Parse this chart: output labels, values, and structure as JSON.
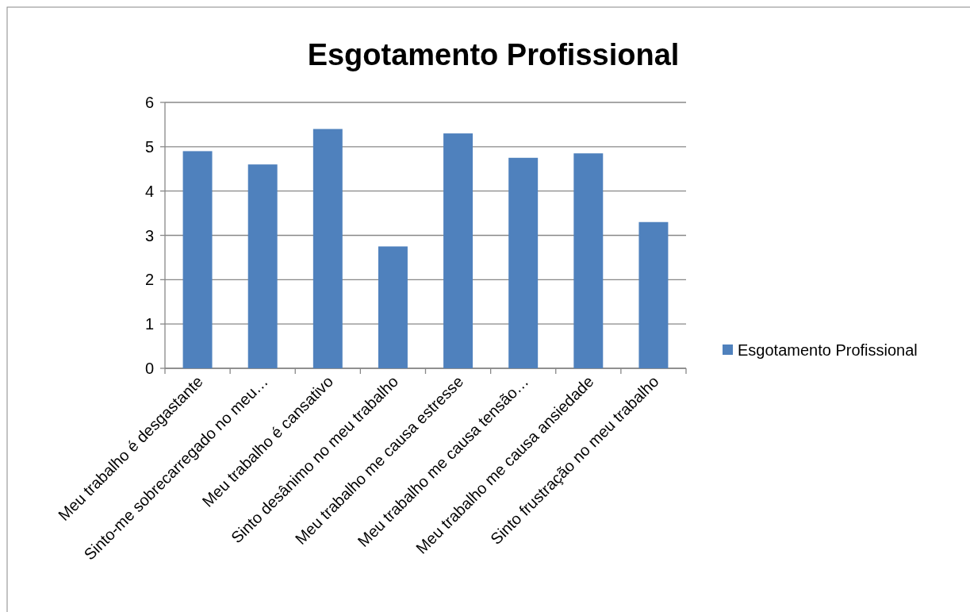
{
  "chart_data": {
    "type": "bar",
    "title": "Esgotamento Profissional",
    "categories": [
      "Meu trabalho é desgastante",
      "Sinto-me sobrecarregado no meu…",
      "Meu trabalho é cansativo",
      "Sinto desânimo no meu trabalho",
      "Meu trabalho me causa estresse",
      "Meu trabalho me causa tensão…",
      "Meu trabalho me causa ansiedade",
      "Sinto frustração no meu trabalho"
    ],
    "series": [
      {
        "name": "Esgotamento Profissional",
        "color": "#4f81bd",
        "values": [
          4.9,
          4.6,
          5.4,
          2.75,
          5.3,
          4.75,
          4.85,
          3.3
        ]
      }
    ],
    "ylim": [
      0,
      6
    ],
    "yticks": [
      0,
      1,
      2,
      3,
      4,
      5,
      6
    ],
    "grid": "y",
    "legend": "right"
  }
}
